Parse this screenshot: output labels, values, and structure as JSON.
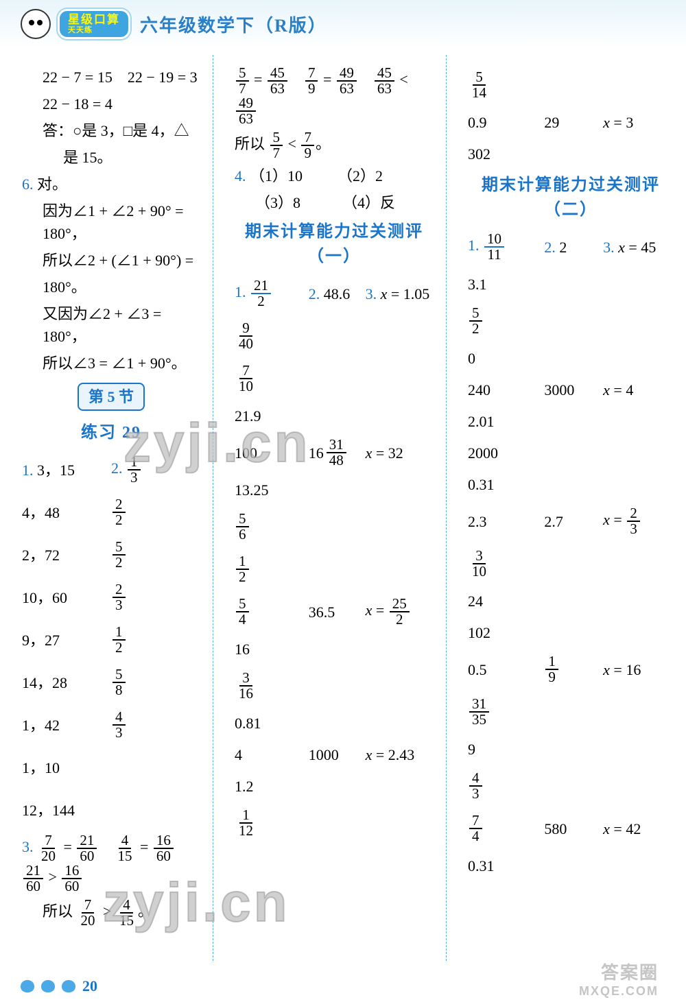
{
  "header": {
    "badge_line1": "星级口算",
    "badge_line2": "天天练",
    "title": "六年级数学下（R版）"
  },
  "col1": {
    "lines_top": [
      "22 − 7 = 15　22 − 19 = 3",
      "22 − 18 = 4"
    ],
    "answer_line1": "答：○是 3，□是 4，△",
    "answer_line2": "是 15。",
    "q6_label": "6.",
    "q6_text": "对。",
    "q6_body": [
      "因为∠1 + ∠2 + 90° = 180°，",
      "所以∠2 + (∠1 + 90°) =",
      "180°。",
      "又因为∠2 + ∠3 = 180°，",
      "所以∠3 = ∠1 + 90°。"
    ],
    "section_pill": "第 5 节",
    "practice_heading": "练习 29",
    "q1_label": "1.",
    "q2_label": "2.",
    "table_col1": [
      "3，15",
      "4，48",
      "2，72",
      "10，60",
      "9，27",
      "14，28",
      "1，42",
      "1，10",
      "12，144"
    ],
    "table_col2_fracs": [
      {
        "n": "1",
        "d": "3"
      },
      {
        "n": "2",
        "d": "2"
      },
      {
        "n": "5",
        "d": "2"
      },
      {
        "n": "2",
        "d": "3"
      },
      {
        "n": "1",
        "d": "2"
      },
      {
        "n": "5",
        "d": "8"
      },
      {
        "n": "4",
        "d": "3"
      },
      null,
      null
    ],
    "q3_label": "3.",
    "q3_line1_parts": {
      "a_n": "7",
      "a_d": "20",
      "b_n": "21",
      "b_d": "60",
      "c_n": "4",
      "c_d": "15",
      "d_n": "16",
      "d_d": "60",
      "e_n": "21",
      "e_d": "60",
      "f_n": "16",
      "f_d": "60"
    },
    "q3_line2_prefix": "所以",
    "q3_line2": {
      "a_n": "7",
      "a_d": "20",
      "b_n": "4",
      "b_d": "15"
    }
  },
  "col2": {
    "top_fracs": {
      "a_n": "5",
      "a_d": "7",
      "b_n": "45",
      "b_d": "63",
      "c_n": "7",
      "c_d": "9",
      "d_n": "49",
      "d_d": "63",
      "e_n": "45",
      "e_d": "63",
      "f_n": "49",
      "f_d": "63"
    },
    "top_line2_prefix": "所以",
    "top_line2": {
      "a_n": "5",
      "a_d": "7",
      "b_n": "7",
      "b_d": "9"
    },
    "q4_label": "4.",
    "q4_items": [
      "（1）10",
      "（2）2",
      "（3）8",
      "（4）反"
    ],
    "heading": "期末计算能力过关测评（一）",
    "q1_label": "1.",
    "q1_val": {
      "n": "21",
      "d": "2"
    },
    "q2_label": "2.",
    "q2_val": "48.6",
    "q3_label": "3.",
    "q3_val": "x = 1.05",
    "list_col1": [
      {
        "type": "frac",
        "n": "9",
        "d": "40"
      },
      {
        "type": "frac",
        "n": "7",
        "d": "10"
      },
      {
        "type": "text",
        "v": "21.9"
      },
      {
        "type": "text",
        "v": "100"
      },
      {
        "type": "text",
        "v": "13.25"
      },
      {
        "type": "frac",
        "n": "5",
        "d": "6"
      },
      {
        "type": "frac",
        "n": "1",
        "d": "2"
      },
      {
        "type": "frac",
        "n": "5",
        "d": "4"
      },
      {
        "type": "text",
        "v": "16"
      },
      {
        "type": "frac",
        "n": "3",
        "d": "16"
      },
      {
        "type": "text",
        "v": "0.81"
      },
      {
        "type": "text",
        "v": "4"
      },
      {
        "type": "text",
        "v": "1.2"
      },
      {
        "type": "frac",
        "n": "1",
        "d": "12"
      }
    ],
    "list_col2": {
      "3": {
        "type": "mixed",
        "w": "16",
        "n": "31",
        "d": "48"
      },
      "7": {
        "type": "text",
        "v": "36.5"
      },
      "11": {
        "type": "text",
        "v": "1000"
      }
    },
    "list_col3": {
      "3": "x = 32",
      "7_frac": {
        "pre": "x =",
        "n": "25",
        "d": "2"
      },
      "11": "x = 2.43"
    }
  },
  "col3": {
    "top_frac": {
      "n": "5",
      "d": "14"
    },
    "row2": {
      "a": "0.9",
      "b": "29",
      "c": "x = 3"
    },
    "row3": "302",
    "heading": "期末计算能力过关测评（二）",
    "q1_label": "1.",
    "q1_val": {
      "n": "10",
      "d": "11"
    },
    "q2_label": "2.",
    "q2_val": "2",
    "q3_label": "3.",
    "q3_val": "x = 45",
    "list_col1": [
      {
        "type": "text",
        "v": "3.1"
      },
      {
        "type": "frac",
        "n": "5",
        "d": "2"
      },
      {
        "type": "text",
        "v": "0"
      },
      {
        "type": "text",
        "v": "240"
      },
      {
        "type": "text",
        "v": "2.01"
      },
      {
        "type": "text",
        "v": "2000"
      },
      {
        "type": "text",
        "v": "0.31"
      },
      {
        "type": "text",
        "v": "2.3"
      },
      {
        "type": "frac",
        "n": "3",
        "d": "10"
      },
      {
        "type": "text",
        "v": "24"
      },
      {
        "type": "text",
        "v": "102"
      },
      {
        "type": "text",
        "v": "0.5"
      },
      {
        "type": "frac",
        "n": "31",
        "d": "35"
      },
      {
        "type": "text",
        "v": "9"
      },
      {
        "type": "frac",
        "n": "4",
        "d": "3"
      },
      {
        "type": "frac",
        "n": "7",
        "d": "4"
      },
      {
        "type": "text",
        "v": "0.31"
      }
    ],
    "list_col2": {
      "3": "3000",
      "7": "2.7",
      "11_frac": {
        "n": "1",
        "d": "9"
      },
      "15": "580"
    },
    "list_col3": {
      "3": "x = 4",
      "7_frac": {
        "pre": "x =",
        "n": "2",
        "d": "3"
      },
      "11": "x = 16",
      "15": "x = 42"
    }
  },
  "footer": {
    "page": "20"
  },
  "watermarks": {
    "wm1": "zyji.cn",
    "wm2": "zyji.cn",
    "ans": "答案圈",
    "url": "MXQE.COM"
  },
  "colors": {
    "blue": "#1a74c9",
    "lightblue": "#5ab0e0",
    "black": "#000000",
    "bg": "#ffffff"
  }
}
